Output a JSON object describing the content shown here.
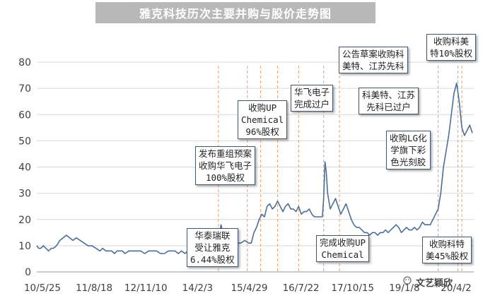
{
  "title": "雅克科技历次主要并购与股价走势图",
  "watermark": "文艺颖欣",
  "chart_data": {
    "type": "line",
    "ylim": [
      0,
      80
    ],
    "yticks": [
      0,
      10,
      20,
      30,
      40,
      50,
      60,
      70,
      80
    ],
    "xticks": [
      "10/5/25",
      "11/8/18",
      "12/11/10",
      "14/2/3",
      "15/4/29",
      "16/7/22",
      "17/10/15",
      "19/1/8",
      "20/4/2"
    ],
    "grid": true,
    "series": [
      {
        "name": "",
        "color": "#4e6e9a",
        "x_index": [
          0,
          3,
          6,
          10,
          14,
          18,
          22,
          25,
          30,
          35,
          40,
          45,
          50,
          55,
          60,
          66,
          72,
          78,
          84,
          90,
          96,
          100,
          105,
          110,
          114,
          118,
          122,
          126,
          130,
          134,
          140,
          146,
          152,
          158,
          164,
          170,
          176,
          182,
          188,
          194,
          200,
          205,
          210,
          215,
          220,
          225,
          230,
          235,
          240,
          245,
          250,
          255,
          260,
          265,
          270,
          274,
          276,
          278,
          280,
          282,
          284,
          286,
          288,
          290,
          292,
          296,
          300,
          304,
          310,
          316,
          322,
          326,
          330,
          334,
          338,
          342,
          346,
          350,
          354,
          358,
          362,
          366,
          370,
          374,
          378,
          382,
          386,
          390,
          394,
          398,
          402,
          406,
          410,
          414,
          418,
          422,
          426,
          430,
          434,
          436,
          438,
          440,
          442,
          444,
          446,
          450,
          454,
          458,
          462,
          466,
          470,
          474,
          478,
          482,
          486,
          490,
          494,
          498,
          502,
          506,
          510,
          514,
          518,
          522,
          526,
          530,
          534,
          538,
          542,
          546,
          550,
          554,
          558,
          562,
          566,
          570,
          574,
          578,
          582,
          586,
          590,
          594,
          598,
          602,
          606,
          610,
          614,
          618,
          622,
          626,
          630,
          634,
          638,
          642,
          646,
          650,
          654,
          658,
          662
        ],
        "y": [
          10,
          9,
          9,
          10,
          9,
          8,
          9,
          9,
          10,
          12,
          13,
          14,
          13,
          12,
          13,
          12,
          11,
          10,
          10,
          9,
          8,
          9,
          8,
          8,
          8,
          7,
          8,
          8,
          8,
          7,
          8,
          8,
          8,
          8,
          7,
          8,
          8,
          8,
          7,
          7,
          8,
          8,
          8,
          7,
          8,
          7,
          8,
          8,
          8,
          9,
          9,
          8,
          9,
          9,
          10,
          10,
          13,
          15,
          18,
          16,
          12,
          11,
          11,
          11,
          11,
          11,
          11,
          11,
          11,
          12,
          11,
          11,
          15,
          17,
          20,
          22,
          21,
          25,
          26,
          24,
          25,
          27,
          25,
          23,
          25,
          26,
          24,
          24,
          23,
          25,
          22,
          23,
          23,
          24,
          22,
          21,
          21,
          21,
          21,
          28,
          42,
          38,
          30,
          27,
          24,
          26,
          28,
          25,
          22,
          24,
          26,
          23,
          20,
          18,
          17,
          17,
          16,
          15,
          15,
          14,
          15,
          15,
          14,
          15,
          15,
          16,
          15,
          16,
          17,
          18,
          17,
          15,
          16,
          17,
          16,
          16,
          17,
          16,
          17,
          19,
          18,
          18,
          18,
          20,
          22,
          24,
          30,
          40,
          46,
          52,
          60,
          68,
          72,
          65,
          55,
          52,
          54,
          56,
          53
        ]
      }
    ],
    "annotations": [
      {
        "text": "华泰瑞联\n受让雅克\n6.44%股权",
        "x_index": 276
      },
      {
        "text": "发布重组预案\n收购华飞电子\n100%股权",
        "x_index": 320
      },
      {
        "text": "收购UP\nChemical\n96%股权",
        "x_index": 340
      },
      {
        "text": "华飞电子\n完成过户",
        "x_index": 366
      },
      {
        "text": "完成收购UP\nChemical",
        "x_index": 398
      },
      {
        "text": "公告草案收购科\n美特、江苏先科",
        "x_index": 436
      },
      {
        "text": "科美特、江苏\n先科已过户",
        "x_index": 460
      },
      {
        "text": "收购LG化\n学旗下彩\n色光刻胶",
        "x_index": 610
      },
      {
        "text": "收购科美\n特10%股权",
        "x_index": 640
      },
      {
        "text": "收购科特\n美45%股权",
        "x_index": 646
      }
    ]
  }
}
